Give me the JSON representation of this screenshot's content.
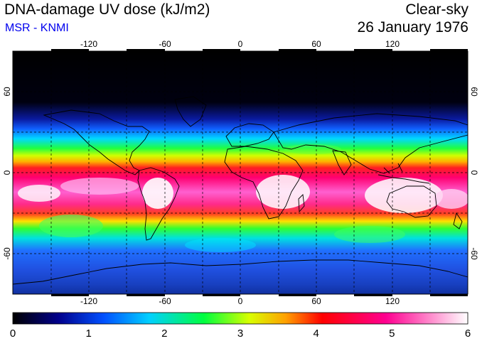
{
  "header": {
    "title": "DNA-damage UV dose (kJ/m2)",
    "subtitle": "MSR - KNMI",
    "condition": "Clear-sky",
    "date": "26 January 1976"
  },
  "map": {
    "lon_ticks": [
      "-120",
      "-60",
      "0",
      "60",
      "120"
    ],
    "lat_ticks": [
      "60",
      "0",
      "-60"
    ],
    "lon_values": [
      -120,
      -60,
      0,
      60,
      120
    ],
    "lat_values": [
      60,
      0,
      -60
    ],
    "lon_range": [
      -180,
      180
    ],
    "lat_range": [
      -90,
      90
    ],
    "grid": true
  },
  "colorbar": {
    "labels": [
      "0",
      "1",
      "2",
      "3",
      "4",
      "5",
      "6"
    ],
    "min": 0,
    "max": 6,
    "colors": [
      "#000000",
      "#00008b",
      "#0050ff",
      "#00ffff",
      "#00ff00",
      "#ffff00",
      "#ff0000",
      "#ff0090",
      "#ffffff"
    ]
  }
}
